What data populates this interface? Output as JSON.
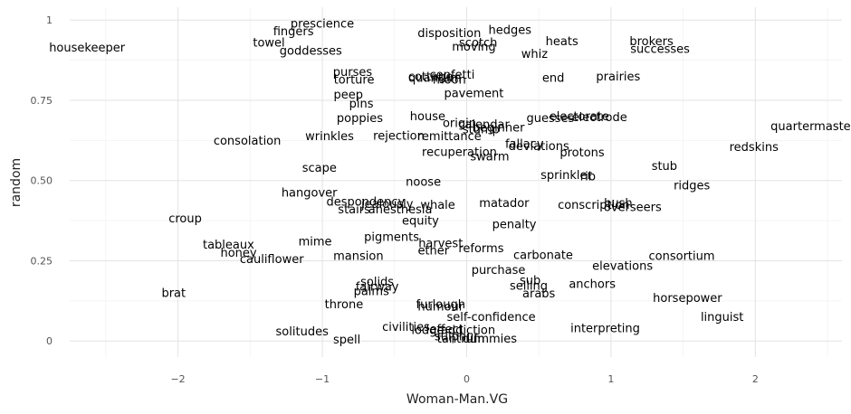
{
  "chart_data": {
    "type": "scatter",
    "title": "",
    "xlabel": "Woman-Man.VG",
    "ylabel": "random",
    "xlim": [
      -2.75,
      2.6
    ],
    "ylim": [
      -0.05,
      1.04
    ],
    "x_ticks": [
      -2,
      -1,
      0,
      1,
      2
    ],
    "x_tick_labels": [
      "−2",
      "−1",
      "0",
      "1",
      "2"
    ],
    "y_ticks": [
      0,
      0.25,
      0.5,
      0.75,
      1
    ],
    "y_tick_labels": [
      "0",
      "0.25",
      "0.50",
      "0.75",
      "1"
    ],
    "grid": true,
    "legend": "none",
    "points": [
      {
        "label": "prescience",
        "x": -1.0,
        "y": 0.99
      },
      {
        "label": "fingers",
        "x": -1.2,
        "y": 0.965
      },
      {
        "label": "disposition",
        "x": -0.12,
        "y": 0.96
      },
      {
        "label": "hedges",
        "x": 0.3,
        "y": 0.97
      },
      {
        "label": "towel",
        "x": -1.37,
        "y": 0.93
      },
      {
        "label": "housekeeper",
        "x": -2.63,
        "y": 0.915
      },
      {
        "label": "goddesses",
        "x": -1.08,
        "y": 0.905
      },
      {
        "label": "scotch",
        "x": 0.08,
        "y": 0.93
      },
      {
        "label": "moving",
        "x": 0.05,
        "y": 0.918
      },
      {
        "label": "heats",
        "x": 0.66,
        "y": 0.935
      },
      {
        "label": "whiz",
        "x": 0.47,
        "y": 0.895
      },
      {
        "label": "brokers",
        "x": 1.28,
        "y": 0.935
      },
      {
        "label": "successes",
        "x": 1.34,
        "y": 0.91
      },
      {
        "label": "purses",
        "x": -0.79,
        "y": 0.838
      },
      {
        "label": "torture",
        "x": -0.78,
        "y": 0.815
      },
      {
        "label": "cottage",
        "x": -0.25,
        "y": 0.825
      },
      {
        "label": "confetti",
        "x": -0.1,
        "y": 0.83
      },
      {
        "label": "quantum",
        "x": -0.22,
        "y": 0.82
      },
      {
        "label": "moon",
        "x": -0.12,
        "y": 0.815
      },
      {
        "label": "end",
        "x": 0.6,
        "y": 0.82
      },
      {
        "label": "prairies",
        "x": 1.05,
        "y": 0.825
      },
      {
        "label": "peep",
        "x": -0.82,
        "y": 0.768
      },
      {
        "label": "pavement",
        "x": 0.05,
        "y": 0.772
      },
      {
        "label": "pins",
        "x": -0.73,
        "y": 0.74
      },
      {
        "label": "poppies",
        "x": -0.74,
        "y": 0.695
      },
      {
        "label": "house",
        "x": -0.27,
        "y": 0.7
      },
      {
        "label": "origin",
        "x": -0.05,
        "y": 0.68
      },
      {
        "label": "calendar",
        "x": 0.12,
        "y": 0.675
      },
      {
        "label": "stump",
        "x": 0.1,
        "y": 0.66
      },
      {
        "label": "beginner",
        "x": 0.22,
        "y": 0.665
      },
      {
        "label": "guesses",
        "x": 0.58,
        "y": 0.695
      },
      {
        "label": "electrode",
        "x": 0.92,
        "y": 0.698
      },
      {
        "label": "electorate",
        "x": 0.78,
        "y": 0.7
      },
      {
        "label": "quartermaster",
        "x": 2.4,
        "y": 0.67
      },
      {
        "label": "consolation",
        "x": -1.52,
        "y": 0.625
      },
      {
        "label": "wrinkles",
        "x": -0.95,
        "y": 0.638
      },
      {
        "label": "rejection",
        "x": -0.47,
        "y": 0.64
      },
      {
        "label": "remittance",
        "x": -0.12,
        "y": 0.638
      },
      {
        "label": "fallacy",
        "x": 0.4,
        "y": 0.615
      },
      {
        "label": "deviations",
        "x": 0.5,
        "y": 0.608
      },
      {
        "label": "protons",
        "x": 0.8,
        "y": 0.588
      },
      {
        "label": "redskins",
        "x": 1.99,
        "y": 0.605
      },
      {
        "label": "recuperation",
        "x": -0.05,
        "y": 0.59
      },
      {
        "label": "swarm",
        "x": 0.16,
        "y": 0.575
      },
      {
        "label": "scape",
        "x": -1.02,
        "y": 0.54
      },
      {
        "label": "stub",
        "x": 1.37,
        "y": 0.545
      },
      {
        "label": "sprinkler",
        "x": 0.69,
        "y": 0.518
      },
      {
        "label": "rib",
        "x": 0.84,
        "y": 0.513
      },
      {
        "label": "noose",
        "x": -0.3,
        "y": 0.497
      },
      {
        "label": "ridges",
        "x": 1.56,
        "y": 0.485
      },
      {
        "label": "hangover",
        "x": -1.09,
        "y": 0.462
      },
      {
        "label": "despondency",
        "x": -0.7,
        "y": 0.435
      },
      {
        "label": "whale",
        "x": -0.2,
        "y": 0.425
      },
      {
        "label": "jealously",
        "x": -0.55,
        "y": 0.428
      },
      {
        "label": "stairs",
        "x": -0.78,
        "y": 0.41
      },
      {
        "label": "anesthesia",
        "x": -0.46,
        "y": 0.41
      },
      {
        "label": "matador",
        "x": 0.26,
        "y": 0.43
      },
      {
        "label": "conscription",
        "x": 0.88,
        "y": 0.425
      },
      {
        "label": "bush",
        "x": 1.05,
        "y": 0.43
      },
      {
        "label": "overseers",
        "x": 1.15,
        "y": 0.418
      },
      {
        "label": "equity",
        "x": -0.32,
        "y": 0.375
      },
      {
        "label": "croup",
        "x": -1.95,
        "y": 0.382
      },
      {
        "label": "penalty",
        "x": 0.33,
        "y": 0.364
      },
      {
        "label": "pigments",
        "x": -0.52,
        "y": 0.325
      },
      {
        "label": "mime",
        "x": -1.05,
        "y": 0.31
      },
      {
        "label": "harvest",
        "x": -0.18,
        "y": 0.305
      },
      {
        "label": "tableaux",
        "x": -1.65,
        "y": 0.3
      },
      {
        "label": "reforms",
        "x": 0.1,
        "y": 0.29
      },
      {
        "label": "ether",
        "x": -0.23,
        "y": 0.283
      },
      {
        "label": "honey",
        "x": -1.58,
        "y": 0.275
      },
      {
        "label": "mansion",
        "x": -0.75,
        "y": 0.265
      },
      {
        "label": "carbonate",
        "x": 0.53,
        "y": 0.268
      },
      {
        "label": "consortium",
        "x": 1.49,
        "y": 0.265
      },
      {
        "label": "cauliflower",
        "x": -1.35,
        "y": 0.255
      },
      {
        "label": "elevations",
        "x": 1.08,
        "y": 0.235
      },
      {
        "label": "purchase",
        "x": 0.22,
        "y": 0.222
      },
      {
        "label": "solids",
        "x": -0.62,
        "y": 0.185
      },
      {
        "label": "sub",
        "x": 0.44,
        "y": 0.19
      },
      {
        "label": "anchors",
        "x": 0.87,
        "y": 0.178
      },
      {
        "label": "fairway",
        "x": -0.62,
        "y": 0.17
      },
      {
        "label": "selling",
        "x": 0.43,
        "y": 0.172
      },
      {
        "label": "palms",
        "x": -0.66,
        "y": 0.155
      },
      {
        "label": "arabs",
        "x": 0.5,
        "y": 0.148
      },
      {
        "label": "brat",
        "x": -2.03,
        "y": 0.15
      },
      {
        "label": "horsepower",
        "x": 1.53,
        "y": 0.135
      },
      {
        "label": "throne",
        "x": -0.85,
        "y": 0.115
      },
      {
        "label": "furlough",
        "x": -0.18,
        "y": 0.115
      },
      {
        "label": "humour",
        "x": -0.18,
        "y": 0.108
      },
      {
        "label": "self-confidence",
        "x": 0.17,
        "y": 0.075
      },
      {
        "label": "linguist",
        "x": 1.77,
        "y": 0.075
      },
      {
        "label": "civilities",
        "x": -0.42,
        "y": 0.045
      },
      {
        "label": "lodge",
        "x": -0.27,
        "y": 0.035
      },
      {
        "label": "effect",
        "x": -0.14,
        "y": 0.038
      },
      {
        "label": "addiction",
        "x": 0.01,
        "y": 0.035
      },
      {
        "label": "interpreting",
        "x": 0.96,
        "y": 0.04
      },
      {
        "label": "solitudes",
        "x": -1.14,
        "y": 0.03
      },
      {
        "label": "spell",
        "x": -0.83,
        "y": 0.005
      },
      {
        "label": "tantrum",
        "x": -0.04,
        "y": 0.008
      },
      {
        "label": "dummies",
        "x": 0.16,
        "y": 0.008
      },
      {
        "label": "sulphur",
        "x": -0.07,
        "y": 0.015
      }
    ]
  }
}
